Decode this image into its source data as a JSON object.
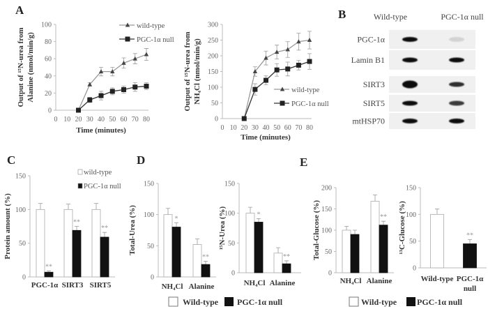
{
  "panel_labels": [
    "A",
    "B",
    "C",
    "D",
    "E"
  ],
  "chart_data": [
    {
      "id": "A1",
      "type": "line",
      "title": "",
      "xlabel": "Time (minutes)",
      "ylabel": [
        "Output of ¹⁵N-urea from",
        "Alanine (nmol/min/g)"
      ],
      "xlim": [
        0,
        80
      ],
      "ylim": [
        0,
        100
      ],
      "xticks": [
        0,
        10,
        20,
        30,
        40,
        50,
        60,
        70,
        80
      ],
      "yticks": [
        0,
        20,
        40,
        60,
        80,
        100
      ],
      "legend": "top-right",
      "grid": false,
      "series": [
        {
          "name": "wild-type",
          "marker": "triangle",
          "color": "#999999",
          "x": [
            20,
            30,
            40,
            50,
            60,
            70,
            80
          ],
          "y": [
            0,
            30,
            45,
            45,
            55,
            60,
            65
          ],
          "err": [
            0,
            2,
            5,
            5,
            6,
            6,
            7
          ]
        },
        {
          "name": "PGC-1α null",
          "marker": "square",
          "color": "#333333",
          "x": [
            20,
            30,
            40,
            50,
            60,
            70,
            80
          ],
          "y": [
            0,
            12,
            17,
            22,
            24,
            27,
            28
          ],
          "err": [
            0,
            3,
            5,
            4,
            4,
            5,
            4
          ]
        }
      ]
    },
    {
      "id": "A2",
      "type": "line",
      "title": "",
      "xlabel": "Time (minutes)",
      "ylabel": [
        "Output of ¹⁵N-urea from",
        "NH₄Cl (nmol/min/g)"
      ],
      "xlim": [
        0,
        80
      ],
      "ylim": [
        0,
        300
      ],
      "xticks": [
        0,
        10,
        20,
        30,
        40,
        50,
        60,
        70,
        80
      ],
      "yticks": [
        0,
        50,
        100,
        150,
        200,
        250,
        300
      ],
      "legend": "right",
      "grid": false,
      "series": [
        {
          "name": "wild-type",
          "marker": "triangle",
          "color": "#999999",
          "x": [
            20,
            30,
            40,
            50,
            60,
            70,
            80
          ],
          "y": [
            0,
            150,
            193,
            212,
            220,
            245,
            250
          ],
          "err": [
            0,
            15,
            22,
            22,
            25,
            27,
            28
          ]
        },
        {
          "name": "PGC-1α null",
          "marker": "square",
          "color": "#333333",
          "x": [
            20,
            30,
            40,
            50,
            60,
            70,
            80
          ],
          "y": [
            0,
            93,
            122,
            155,
            158,
            170,
            182
          ],
          "err": [
            0,
            18,
            14,
            20,
            22,
            15,
            25
          ]
        }
      ]
    },
    {
      "id": "C",
      "type": "bar",
      "title": "",
      "xlabel": "",
      "ylabel": [
        "Protein amount (%)"
      ],
      "ylim": [
        0,
        150
      ],
      "yticks": [
        0,
        50,
        100,
        150
      ],
      "categories": [
        "PGC-1α",
        "SIRT3",
        "SIRT5"
      ],
      "legend": "top-right",
      "grid": false,
      "series": [
        {
          "name": "wild-type",
          "color": "#ffffff",
          "values": [
            100,
            100,
            100
          ],
          "err": [
            9,
            8,
            9
          ],
          "sig": [
            "",
            "",
            ""
          ]
        },
        {
          "name": "PGC-1α null",
          "color": "#111111",
          "values": [
            7,
            69,
            59
          ],
          "err": [
            2,
            6,
            7
          ],
          "sig": [
            "**",
            "**",
            "**"
          ]
        }
      ]
    },
    {
      "id": "D1",
      "type": "bar",
      "title": "",
      "xlabel": "",
      "ylabel": [
        "Total-Urea (%)"
      ],
      "ylim": [
        0,
        150
      ],
      "yticks": [
        0,
        50,
        100,
        150
      ],
      "categories": [
        "NH₄Cl",
        "Alanine"
      ],
      "grid": false,
      "series": [
        {
          "name": "Wild-type",
          "color": "#ffffff",
          "values": [
            100,
            52
          ],
          "err": [
            10,
            9
          ],
          "sig": [
            "",
            ""
          ]
        },
        {
          "name": "PGC-1α null",
          "color": "#111111",
          "values": [
            80,
            20
          ],
          "err": [
            7,
            5
          ],
          "sig": [
            "*",
            "**"
          ]
        }
      ]
    },
    {
      "id": "D2",
      "type": "bar",
      "title": "",
      "xlabel": "",
      "ylabel": [
        "¹⁵N-Urea (%)"
      ],
      "ylim": [
        0,
        150
      ],
      "yticks": [
        0,
        50,
        100,
        150
      ],
      "categories": [
        "NH₄Cl",
        "Alanine"
      ],
      "grid": false,
      "series": [
        {
          "name": "Wild-type",
          "color": "#ffffff",
          "values": [
            100,
            33
          ],
          "err": [
            10,
            9
          ],
          "sig": [
            "",
            ""
          ]
        },
        {
          "name": "PGC-1α null",
          "color": "#111111",
          "values": [
            85,
            15
          ],
          "err": [
            6,
            5
          ],
          "sig": [
            "*",
            "**"
          ]
        }
      ]
    },
    {
      "id": "E1",
      "type": "bar",
      "title": "",
      "xlabel": "",
      "ylabel": [
        "Total-Glucose (%)"
      ],
      "ylim": [
        0,
        200
      ],
      "yticks": [
        0,
        50,
        100,
        150,
        200
      ],
      "categories": [
        "NH₄Cl",
        "Alanine"
      ],
      "grid": false,
      "series": [
        {
          "name": "Wild-type",
          "color": "#ffffff",
          "values": [
            100,
            168
          ],
          "err": [
            9,
            15
          ],
          "sig": [
            "",
            ""
          ]
        },
        {
          "name": "PGC-1α null",
          "color": "#111111",
          "values": [
            90,
            112
          ],
          "err": [
            10,
            9
          ],
          "sig": [
            "",
            "**"
          ]
        }
      ]
    },
    {
      "id": "E2",
      "type": "bar",
      "title": "",
      "xlabel": "",
      "ylabel": [
        "¹³C-Glucose (%)"
      ],
      "ylim": [
        0,
        150
      ],
      "yticks": [
        0,
        50,
        100,
        150
      ],
      "categories": [
        "Wild-type",
        "PGC-1α null"
      ],
      "grid": false,
      "series": [
        {
          "name": "",
          "colors": [
            "#ffffff",
            "#111111"
          ],
          "values": [
            100,
            45
          ],
          "err": [
            10,
            8
          ],
          "sig": [
            "",
            "**"
          ]
        }
      ]
    }
  ],
  "blot": {
    "columns": [
      "Wild-type",
      "PGC-1α null"
    ],
    "rows": [
      {
        "label": "PGC-1α",
        "intensity": [
          1.0,
          0.12
        ]
      },
      {
        "label": "Lamin B1",
        "intensity": [
          1.0,
          1.0
        ]
      },
      {
        "label": "SIRT3",
        "intensity": [
          1.0,
          0.85
        ]
      },
      {
        "label": "SIRT5",
        "intensity": [
          1.0,
          0.8
        ]
      },
      {
        "label": "mtHSP70",
        "intensity": [
          1.0,
          1.0
        ]
      }
    ]
  },
  "bottom_legends": {
    "wild_type": "Wild-type",
    "null": "PGC-1α null"
  }
}
